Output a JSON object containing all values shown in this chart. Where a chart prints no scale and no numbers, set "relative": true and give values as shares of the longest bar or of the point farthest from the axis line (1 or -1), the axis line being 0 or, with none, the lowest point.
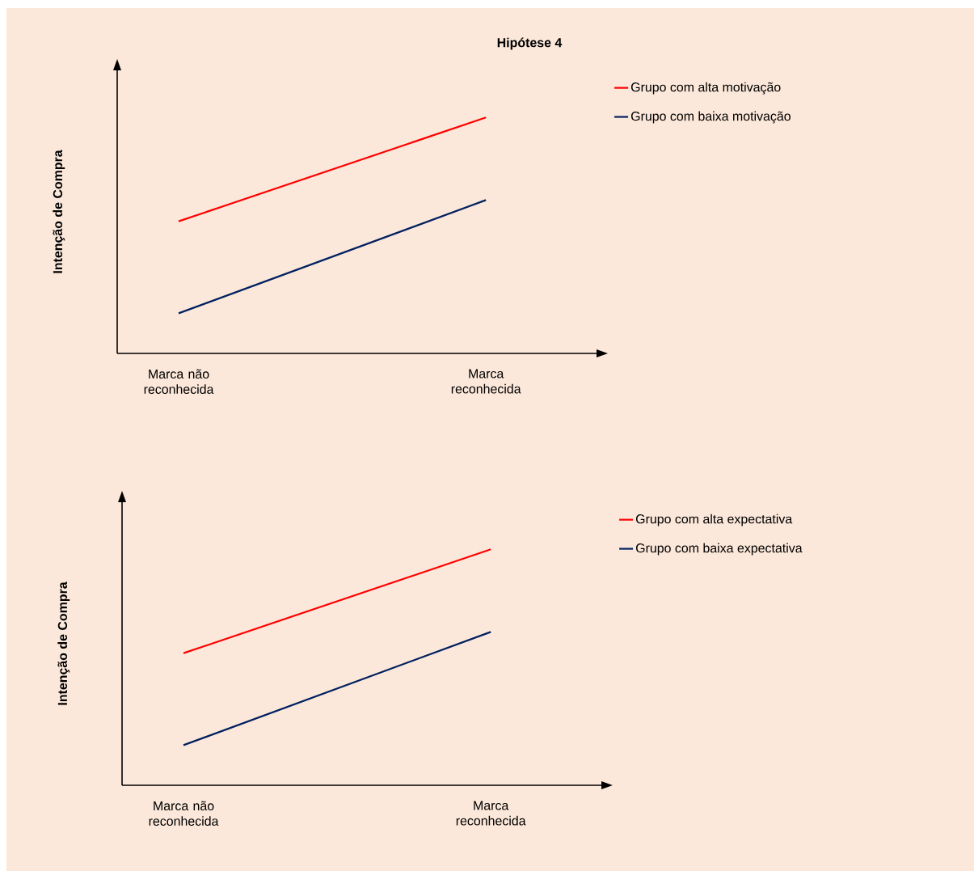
{
  "chart_data": [
    {
      "type": "line",
      "title": "Hipótese 4",
      "ylabel": "Intenção de Compra",
      "categories": [
        "Marca não reconhecida",
        "Marca reconhecida"
      ],
      "relative": true,
      "legend": "right",
      "grid": false,
      "marker": "none",
      "line_style": "solid",
      "series": [
        {
          "name": "Grupo com alta motivação",
          "color": "#ff0000",
          "values": [
            0.56,
            1
          ]
        },
        {
          "name": "Grupo com baixa motivação",
          "color": "#002060",
          "values": [
            0.17,
            0.65
          ]
        }
      ]
    },
    {
      "type": "line",
      "ylabel": "Intenção de Compra",
      "categories": [
        "Marca não reconhecida",
        "Marca reconhecida"
      ],
      "relative": true,
      "legend": "right",
      "grid": false,
      "marker": "none",
      "line_style": "solid",
      "series": [
        {
          "name": "Grupo com alta expectativa",
          "color": "#ff0000",
          "values": [
            0.56,
            1
          ]
        },
        {
          "name": "Grupo com baixa expectativa",
          "color": "#002060",
          "values": [
            0.17,
            0.65
          ]
        }
      ]
    }
  ]
}
